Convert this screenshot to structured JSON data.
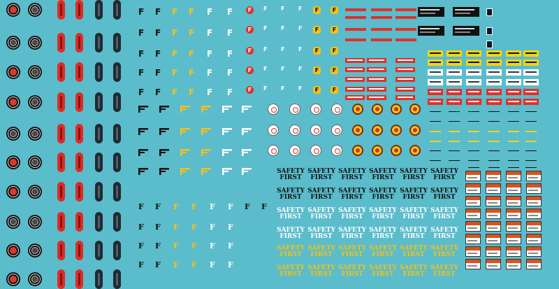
{
  "letter_f": "F",
  "safety_first": {
    "line1": "SAFETY",
    "line2": "FIRST"
  },
  "colors": {
    "background": "#5bbccb",
    "red": "#e02a26",
    "black": "#111111",
    "yellow": "#f2c21a",
    "white": "#ffffff",
    "navy": "#0d1726"
  }
}
